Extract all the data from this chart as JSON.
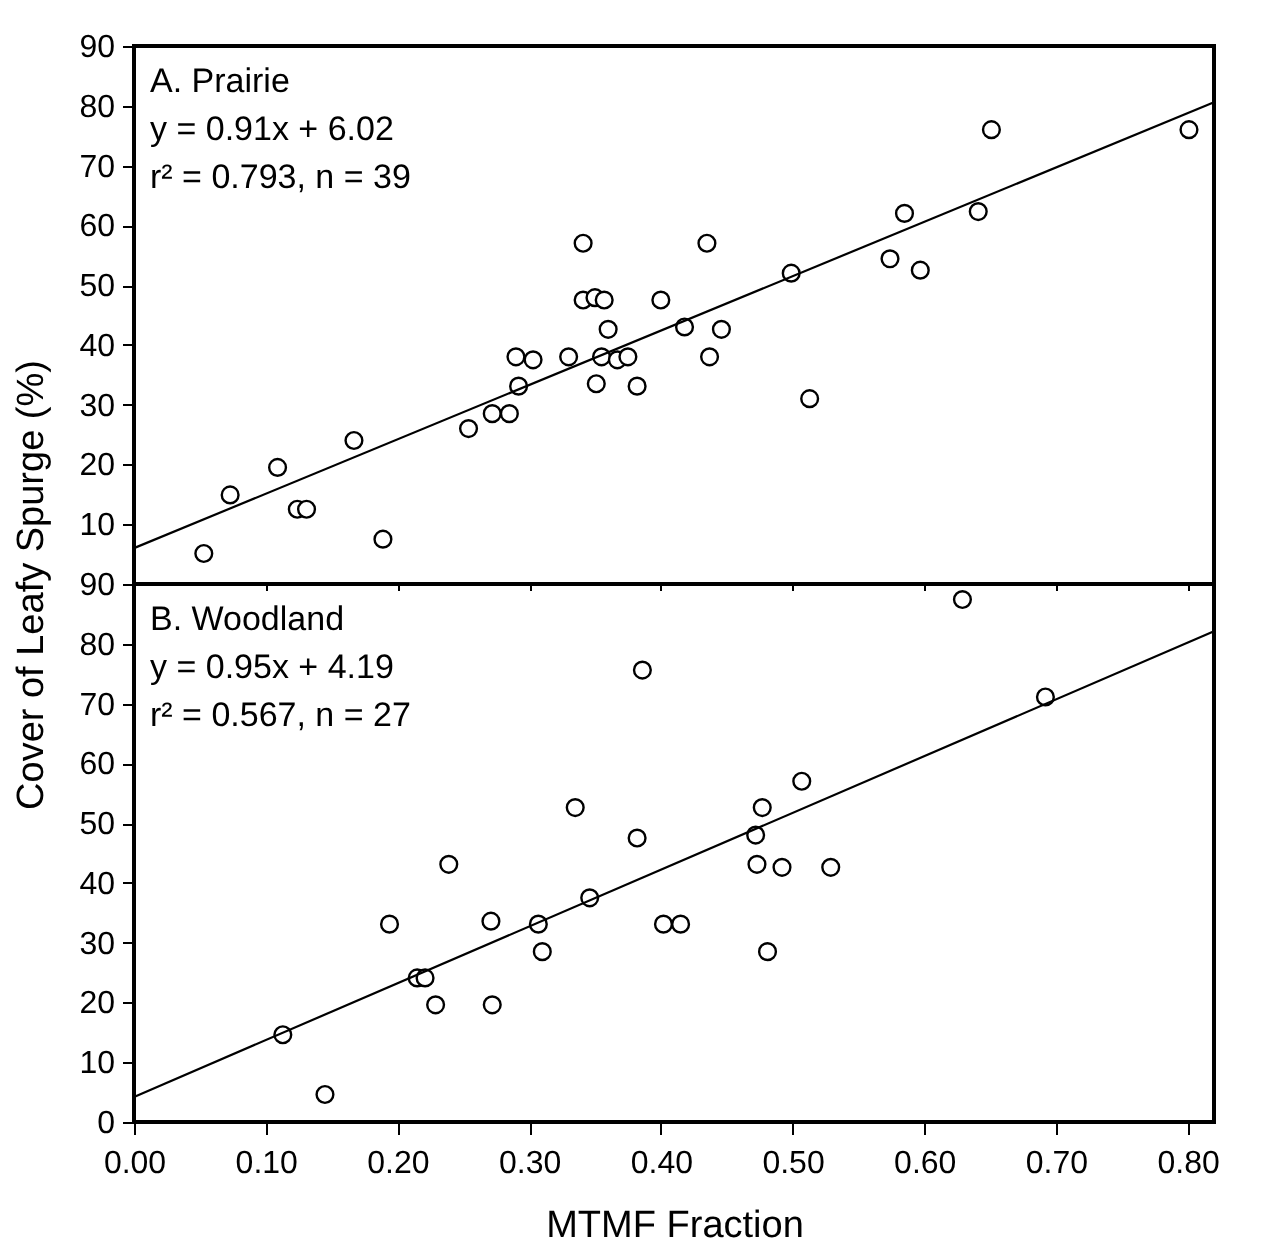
{
  "chart_data": [
    {
      "type": "scatter",
      "ylabel": "Cover of Leafy Spurge (%)",
      "xlim": [
        0,
        0.82
      ],
      "xticks": [
        0,
        0.1,
        0.2,
        0.3,
        0.4,
        0.5,
        0.6,
        0.7,
        0.8
      ],
      "ylim": [
        0,
        90
      ],
      "yticks": [
        10,
        20,
        30,
        40,
        50,
        60,
        70,
        80,
        90
      ],
      "tick_labels": "y",
      "grid": false,
      "marker": "circle",
      "annotations": [
        "A. Prairie",
        "y = 0.91x + 6.02",
        "r² = 0.793, n = 39"
      ],
      "series": [
        {
          "color": "#000000",
          "x": [
            0.053,
            0.073,
            0.109,
            0.124,
            0.131,
            0.167,
            0.189,
            0.254,
            0.272,
            0.285,
            0.29,
            0.292,
            0.303,
            0.33,
            0.341,
            0.341,
            0.35,
            0.351,
            0.355,
            0.357,
            0.36,
            0.367,
            0.375,
            0.382,
            0.4,
            0.418,
            0.435,
            0.437,
            0.446,
            0.499,
            0.513,
            0.574,
            0.585,
            0.597,
            0.641,
            0.651,
            0.801
          ],
          "values": [
            5.1,
            14.9,
            19.5,
            12.5,
            12.5,
            24.0,
            7.5,
            26.0,
            28.5,
            28.5,
            38.0,
            33.1,
            37.5,
            38.0,
            57.0,
            47.5,
            47.9,
            33.5,
            38.0,
            47.5,
            42.6,
            37.5,
            38.0,
            33.1,
            47.5,
            43.0,
            57.0,
            38.0,
            42.6,
            52.0,
            31.0,
            54.4,
            62.0,
            52.5,
            62.3,
            76.0,
            76.0
          ]
        },
        {
          "type": "line",
          "color": "#000000",
          "line_style": "solid",
          "marker": "none",
          "x": [
            0,
            0.82
          ],
          "values": [
            6.0,
            80.6
          ]
        }
      ]
    },
    {
      "type": "scatter",
      "xlabel": "MTMF Fraction",
      "xlim": [
        0,
        0.82
      ],
      "xticks": [
        {
          "value": 0,
          "label": "0.00"
        },
        {
          "value": 0.1,
          "label": "0.10"
        },
        {
          "value": 0.2,
          "label": "0.20"
        },
        {
          "value": 0.3,
          "label": "0.30"
        },
        {
          "value": 0.4,
          "label": "0.40"
        },
        {
          "value": 0.5,
          "label": "0.50"
        },
        {
          "value": 0.6,
          "label": "0.60"
        },
        {
          "value": 0.7,
          "label": "0.70"
        },
        {
          "value": 0.8,
          "label": "0.80"
        }
      ],
      "ylim": [
        0,
        90
      ],
      "yticks": [
        0,
        10,
        20,
        30,
        40,
        50,
        60,
        70,
        80,
        90
      ],
      "grid": false,
      "marker": "circle",
      "annotations": [
        "B. Woodland",
        "y = 0.95x + 4.19",
        "r² = 0.567, n = 27"
      ],
      "series": [
        {
          "color": "#000000",
          "x": [
            0.629,
            0.386,
            0.692,
            0.507,
            0.335,
            0.477,
            0.382,
            0.472,
            0.239,
            0.473,
            0.492,
            0.529,
            0.346,
            0.194,
            0.271,
            0.307,
            0.402,
            0.415,
            0.31,
            0.481,
            0.215,
            0.221,
            0.229,
            0.272,
            0.113,
            0.145
          ],
          "values": [
            87.4,
            75.6,
            71.1,
            57.0,
            52.6,
            52.6,
            47.5,
            48.0,
            43.1,
            43.1,
            42.6,
            42.6,
            37.5,
            33.1,
            33.6,
            33.1,
            33.1,
            33.1,
            28.5,
            28.5,
            24.1,
            24.1,
            19.6,
            19.6,
            14.6,
            4.6
          ]
        },
        {
          "type": "line",
          "color": "#000000",
          "line_style": "solid",
          "marker": "none",
          "x": [
            0,
            0.82
          ],
          "values": [
            4.2,
            82.1
          ]
        }
      ]
    }
  ]
}
